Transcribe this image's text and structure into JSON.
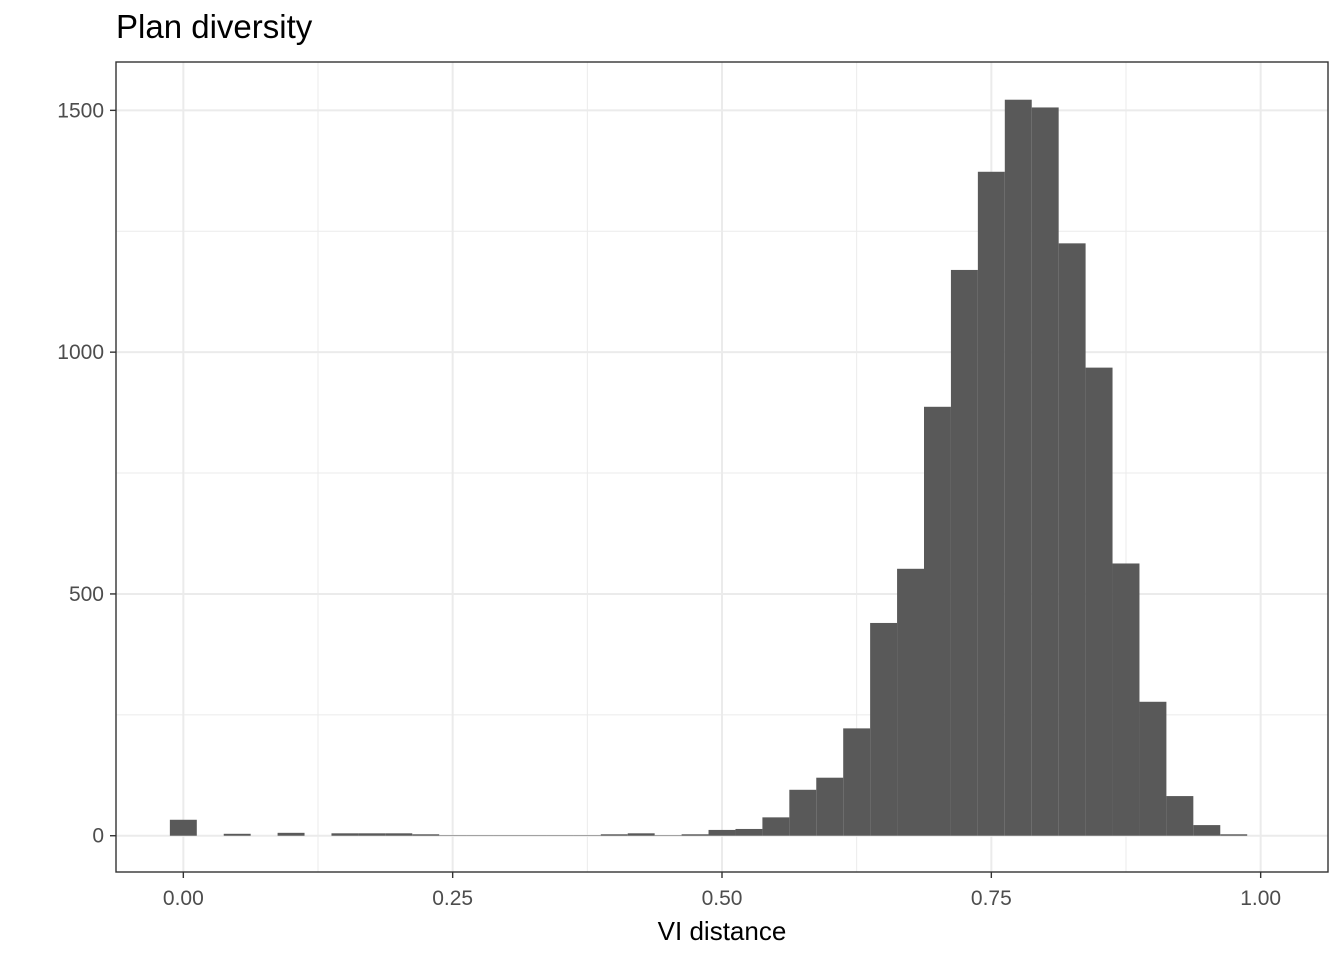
{
  "chart_data": {
    "type": "bar",
    "title": "Plan diversity",
    "xlabel": "VI distance",
    "ylabel": "",
    "xlim": [
      -0.0625,
      1.0625
    ],
    "ylim": [
      -75,
      1600
    ],
    "x_ticks": [
      0.0,
      0.25,
      0.5,
      0.75,
      1.0
    ],
    "x_tick_labels": [
      "0.00",
      "0.25",
      "0.50",
      "0.75",
      "1.00"
    ],
    "y_ticks": [
      0,
      500,
      1000,
      1500
    ],
    "y_tick_labels": [
      "0",
      "500",
      "1000",
      "1500"
    ],
    "grid": true,
    "bin_width": 0.025,
    "bin_centers": [
      0.0,
      0.025,
      0.05,
      0.075,
      0.1,
      0.125,
      0.15,
      0.175,
      0.2,
      0.225,
      0.25,
      0.275,
      0.3,
      0.325,
      0.35,
      0.375,
      0.4,
      0.425,
      0.45,
      0.475,
      0.5,
      0.525,
      0.55,
      0.575,
      0.6,
      0.625,
      0.65,
      0.675,
      0.7,
      0.725,
      0.75,
      0.775,
      0.8,
      0.825,
      0.85,
      0.875,
      0.9,
      0.925,
      0.95,
      0.975,
      1.0
    ],
    "values": [
      33,
      0,
      4,
      0,
      6,
      0,
      5,
      5,
      5,
      3,
      1,
      1,
      1,
      1,
      1,
      1,
      3,
      5,
      1,
      3,
      12,
      14,
      38,
      95,
      120,
      222,
      440,
      552,
      887,
      1170,
      1373,
      1522,
      1506,
      1225,
      968,
      563,
      277,
      82,
      22,
      3,
      0
    ],
    "bar_color": "#595959",
    "grid_color": "#ebebeb",
    "panel_border_color": "#333333"
  }
}
